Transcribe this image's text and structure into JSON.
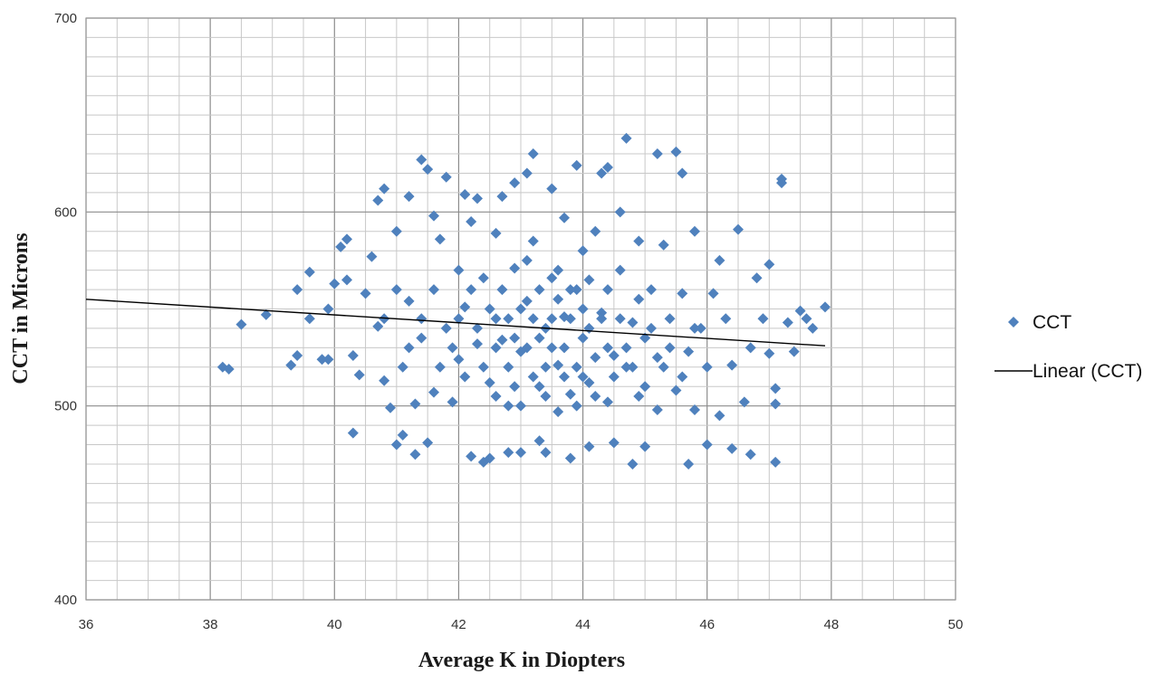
{
  "chart_data": {
    "type": "scatter",
    "title": "",
    "xlabel": "Average K in Diopters",
    "ylabel": "CCT in Microns",
    "xlim": [
      36,
      50
    ],
    "ylim": [
      400,
      700
    ],
    "x_ticks": [
      "36",
      "38",
      "40",
      "42",
      "44",
      "46",
      "48",
      "50"
    ],
    "y_ticks": [
      "400",
      "500",
      "600",
      "700"
    ],
    "grid": true,
    "legend_position": "right",
    "series": [
      {
        "name": "CCT",
        "marker": "diamond",
        "color": "#4f81bd",
        "points": [
          [
            38.2,
            520
          ],
          [
            38.3,
            519
          ],
          [
            38.5,
            542
          ],
          [
            38.9,
            547
          ],
          [
            39.3,
            521
          ],
          [
            39.4,
            526
          ],
          [
            39.4,
            560
          ],
          [
            39.6,
            569
          ],
          [
            39.6,
            545
          ],
          [
            39.8,
            524
          ],
          [
            39.9,
            524
          ],
          [
            39.9,
            550
          ],
          [
            40.0,
            563
          ],
          [
            40.1,
            582
          ],
          [
            40.2,
            586
          ],
          [
            40.2,
            565
          ],
          [
            40.3,
            526
          ],
          [
            40.3,
            486
          ],
          [
            40.4,
            516
          ],
          [
            40.5,
            558
          ],
          [
            40.6,
            577
          ],
          [
            40.7,
            541
          ],
          [
            40.7,
            606
          ],
          [
            40.8,
            612
          ],
          [
            40.8,
            513
          ],
          [
            40.9,
            499
          ],
          [
            41.0,
            480
          ],
          [
            41.0,
            590
          ],
          [
            41.1,
            520
          ],
          [
            41.1,
            485
          ],
          [
            41.2,
            554
          ],
          [
            41.2,
            608
          ],
          [
            41.3,
            501
          ],
          [
            41.3,
            475
          ],
          [
            41.4,
            627
          ],
          [
            41.4,
            535
          ],
          [
            41.5,
            622
          ],
          [
            41.5,
            481
          ],
          [
            41.6,
            598
          ],
          [
            41.6,
            507
          ],
          [
            41.7,
            586
          ],
          [
            41.8,
            618
          ],
          [
            41.8,
            540
          ],
          [
            41.9,
            502
          ],
          [
            42.0,
            570
          ],
          [
            42.0,
            524
          ],
          [
            42.1,
            609
          ],
          [
            42.1,
            551
          ],
          [
            42.2,
            474
          ],
          [
            42.2,
            595
          ],
          [
            42.3,
            532
          ],
          [
            42.3,
            607
          ],
          [
            42.4,
            471
          ],
          [
            42.4,
            566
          ],
          [
            42.5,
            473
          ],
          [
            42.5,
            512
          ],
          [
            42.6,
            589
          ],
          [
            42.6,
            545
          ],
          [
            42.7,
            534
          ],
          [
            42.7,
            608
          ],
          [
            42.8,
            500
          ],
          [
            42.8,
            476
          ],
          [
            42.9,
            571
          ],
          [
            42.9,
            615
          ],
          [
            43.0,
            476
          ],
          [
            43.0,
            528
          ],
          [
            43.1,
            554
          ],
          [
            43.1,
            620
          ],
          [
            43.2,
            630
          ],
          [
            43.2,
            585
          ],
          [
            43.3,
            482
          ],
          [
            43.3,
            510
          ],
          [
            43.4,
            540
          ],
          [
            43.4,
            476
          ],
          [
            43.5,
            612
          ],
          [
            43.5,
            566
          ],
          [
            43.6,
            497
          ],
          [
            43.6,
            521
          ],
          [
            43.7,
            546
          ],
          [
            43.7,
            597
          ],
          [
            43.8,
            473
          ],
          [
            43.8,
            506
          ],
          [
            43.9,
            624
          ],
          [
            43.9,
            560
          ],
          [
            44.0,
            535
          ],
          [
            44.0,
            580
          ],
          [
            44.1,
            479
          ],
          [
            44.1,
            512
          ],
          [
            44.2,
            590
          ],
          [
            44.3,
            620
          ],
          [
            44.3,
            548
          ],
          [
            44.4,
            623
          ],
          [
            44.4,
            502
          ],
          [
            44.5,
            526
          ],
          [
            44.5,
            481
          ],
          [
            44.6,
            570
          ],
          [
            44.6,
            600
          ],
          [
            44.7,
            638
          ],
          [
            44.7,
            520
          ],
          [
            44.8,
            470
          ],
          [
            44.8,
            543
          ],
          [
            44.9,
            585
          ],
          [
            44.9,
            505
          ],
          [
            45.0,
            479
          ],
          [
            45.0,
            535
          ],
          [
            45.1,
            560
          ],
          [
            45.2,
            630
          ],
          [
            45.2,
            498
          ],
          [
            45.3,
            520
          ],
          [
            45.3,
            583
          ],
          [
            45.4,
            545
          ],
          [
            45.5,
            631
          ],
          [
            45.5,
            508
          ],
          [
            45.6,
            620
          ],
          [
            45.6,
            558
          ],
          [
            45.7,
            470
          ],
          [
            45.7,
            528
          ],
          [
            45.8,
            590
          ],
          [
            45.8,
            498
          ],
          [
            45.9,
            540
          ],
          [
            46.0,
            480
          ],
          [
            46.0,
            520
          ],
          [
            46.1,
            558
          ],
          [
            46.2,
            575
          ],
          [
            46.2,
            495
          ],
          [
            46.3,
            545
          ],
          [
            46.4,
            478
          ],
          [
            46.4,
            521
          ],
          [
            46.5,
            591
          ],
          [
            46.6,
            502
          ],
          [
            46.7,
            475
          ],
          [
            46.7,
            530
          ],
          [
            46.8,
            566
          ],
          [
            46.9,
            545
          ],
          [
            47.0,
            573
          ],
          [
            47.0,
            527
          ],
          [
            47.1,
            509
          ],
          [
            47.1,
            471
          ],
          [
            47.1,
            501
          ],
          [
            47.2,
            615
          ],
          [
            47.2,
            617
          ],
          [
            47.3,
            543
          ],
          [
            47.4,
            528
          ],
          [
            47.5,
            549
          ],
          [
            47.6,
            545
          ],
          [
            47.7,
            540
          ],
          [
            47.9,
            551
          ],
          [
            41.6,
            560
          ],
          [
            41.9,
            530
          ],
          [
            42.0,
            545
          ],
          [
            42.1,
            515
          ],
          [
            42.2,
            560
          ],
          [
            42.3,
            540
          ],
          [
            42.4,
            520
          ],
          [
            42.5,
            550
          ],
          [
            42.6,
            530
          ],
          [
            42.6,
            505
          ],
          [
            42.7,
            560
          ],
          [
            42.8,
            520
          ],
          [
            42.8,
            545
          ],
          [
            42.9,
            535
          ],
          [
            42.9,
            510
          ],
          [
            43.0,
            550
          ],
          [
            43.0,
            500
          ],
          [
            43.1,
            530
          ],
          [
            43.1,
            575
          ],
          [
            43.2,
            515
          ],
          [
            43.2,
            545
          ],
          [
            43.3,
            535
          ],
          [
            43.3,
            560
          ],
          [
            43.4,
            520
          ],
          [
            43.4,
            505
          ],
          [
            43.5,
            545
          ],
          [
            43.5,
            530
          ],
          [
            43.6,
            555
          ],
          [
            43.6,
            570
          ],
          [
            43.7,
            515
          ],
          [
            43.7,
            530
          ],
          [
            43.8,
            545
          ],
          [
            43.8,
            560
          ],
          [
            43.9,
            520
          ],
          [
            43.9,
            500
          ],
          [
            44.0,
            550
          ],
          [
            44.0,
            515
          ],
          [
            44.1,
            540
          ],
          [
            44.1,
            565
          ],
          [
            44.2,
            525
          ],
          [
            44.2,
            505
          ],
          [
            44.3,
            545
          ],
          [
            44.4,
            530
          ],
          [
            44.4,
            560
          ],
          [
            44.5,
            515
          ],
          [
            44.6,
            545
          ],
          [
            44.7,
            530
          ],
          [
            44.8,
            520
          ],
          [
            44.9,
            555
          ],
          [
            45.0,
            510
          ],
          [
            45.1,
            540
          ],
          [
            45.2,
            525
          ],
          [
            45.4,
            530
          ],
          [
            45.6,
            515
          ],
          [
            45.8,
            540
          ],
          [
            41.4,
            545
          ],
          [
            41.7,
            520
          ],
          [
            41.0,
            560
          ],
          [
            41.2,
            530
          ],
          [
            40.8,
            545
          ]
        ]
      },
      {
        "name": "Linear (CCT)",
        "type": "line",
        "color": "#000000",
        "points": [
          [
            36,
            555
          ],
          [
            47.9,
            531
          ]
        ]
      }
    ]
  }
}
